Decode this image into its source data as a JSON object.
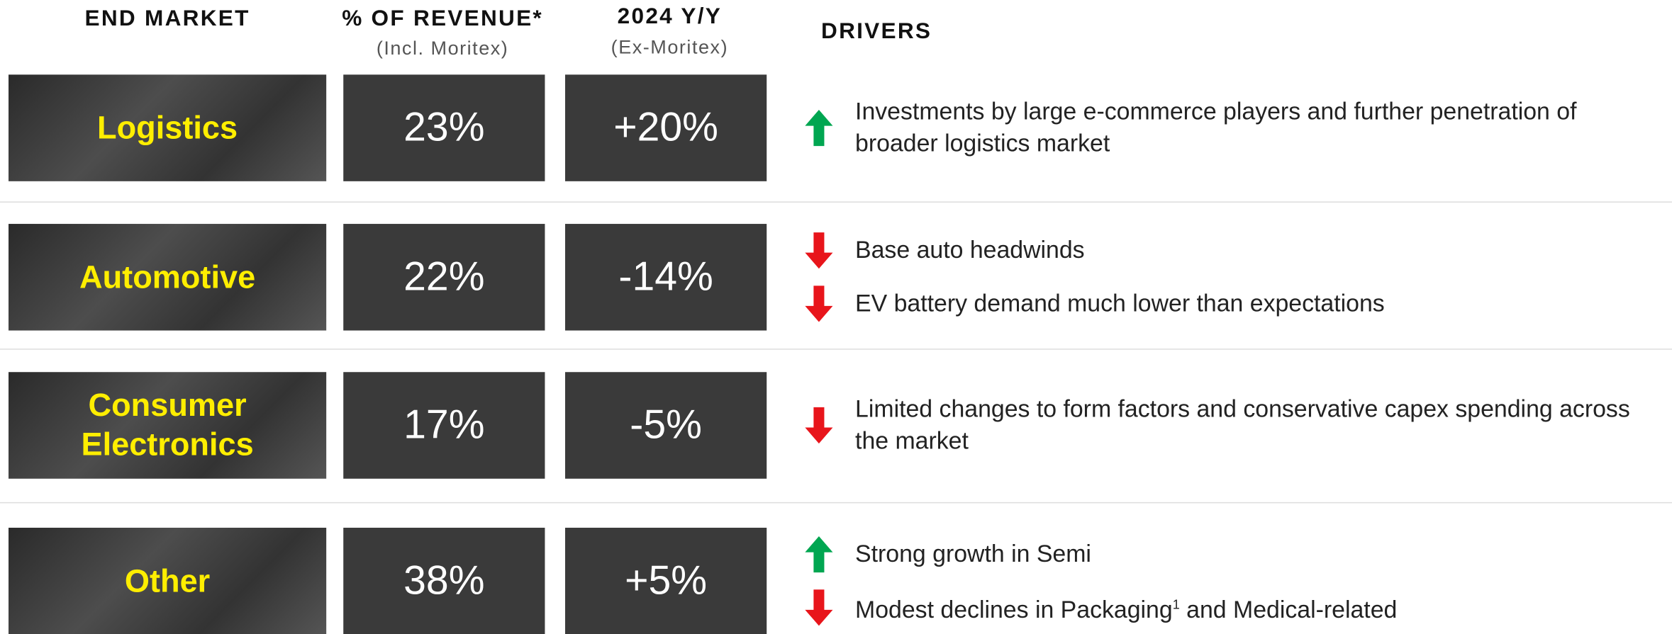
{
  "header": {
    "end_market": "END MARKET",
    "revenue": "% OF REVENUE*",
    "revenue_note": "(Incl. Moritex)",
    "yoy": "2024 Y/Y",
    "yoy_note": "(Ex-Moritex)",
    "drivers": "DRIVERS"
  },
  "rows": [
    {
      "market": "Logistics",
      "revenue": "23%",
      "yoy": "+20%",
      "drivers": [
        {
          "direction": "up",
          "text": "Investments by large e-commerce players and further penetration of broader logistics market"
        }
      ]
    },
    {
      "market": "Automotive",
      "revenue": "22%",
      "yoy": "-14%",
      "drivers": [
        {
          "direction": "down",
          "text": "Base auto headwinds"
        },
        {
          "direction": "down",
          "text": "EV battery demand much lower than expectations"
        }
      ]
    },
    {
      "market": "Consumer Electronics",
      "revenue": "17%",
      "yoy": "-5%",
      "drivers": [
        {
          "direction": "down",
          "text": "Limited changes to form factors and conservative capex spending across the market"
        }
      ]
    },
    {
      "market": "Other",
      "revenue": "38%",
      "yoy": "+5%",
      "drivers": [
        {
          "direction": "up",
          "text": "Strong growth in Semi"
        },
        {
          "direction": "down",
          "text": "Modest declines in Packaging",
          "footnote": "1",
          "text_after": " and Medical-related"
        }
      ]
    }
  ]
}
